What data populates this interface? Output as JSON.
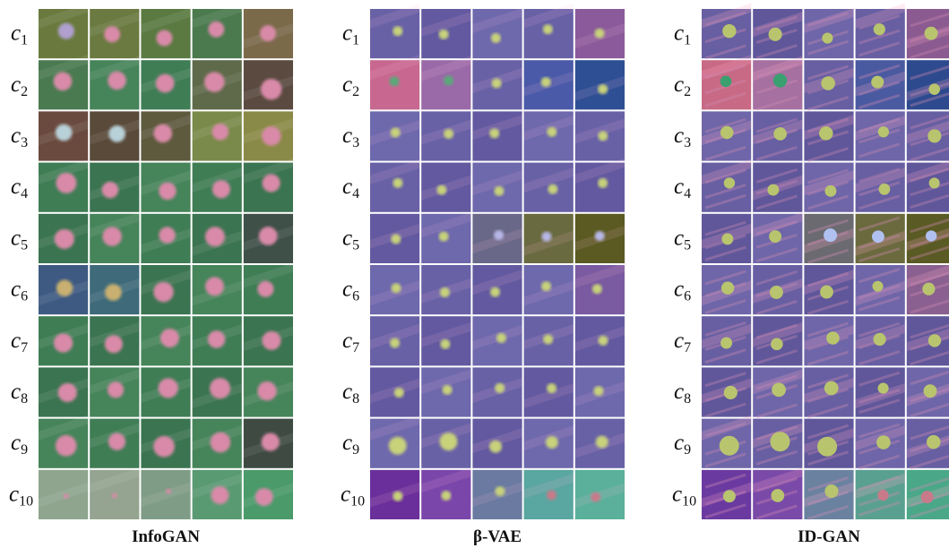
{
  "panels": [
    {
      "caption": "InfoGAN",
      "row_labels": [
        {
          "symbol": "c",
          "subscript": "1"
        },
        {
          "symbol": "c",
          "subscript": "2"
        },
        {
          "symbol": "c",
          "subscript": "3"
        },
        {
          "symbol": "c",
          "subscript": "4"
        },
        {
          "symbol": "c",
          "subscript": "5"
        },
        {
          "symbol": "c",
          "subscript": "6"
        },
        {
          "symbol": "c",
          "subscript": "7"
        },
        {
          "symbol": "c",
          "subscript": "8"
        },
        {
          "symbol": "c",
          "subscript": "9"
        },
        {
          "symbol": "c",
          "subscript": "10"
        }
      ]
    },
    {
      "caption": "β-VAE",
      "row_labels": [
        {
          "symbol": "c",
          "subscript": "1"
        },
        {
          "symbol": "c",
          "subscript": "2"
        },
        {
          "symbol": "c",
          "subscript": "3"
        },
        {
          "symbol": "c",
          "subscript": "4"
        },
        {
          "symbol": "c",
          "subscript": "5"
        },
        {
          "symbol": "c",
          "subscript": "6"
        },
        {
          "symbol": "c",
          "subscript": "7"
        },
        {
          "symbol": "c",
          "subscript": "8"
        },
        {
          "symbol": "c",
          "subscript": "9"
        },
        {
          "symbol": "c",
          "subscript": "10"
        }
      ]
    },
    {
      "caption": "ID-GAN",
      "row_labels": [
        {
          "symbol": "c",
          "subscript": "1"
        },
        {
          "symbol": "c",
          "subscript": "2"
        },
        {
          "symbol": "c",
          "subscript": "3"
        },
        {
          "symbol": "c",
          "subscript": "4"
        },
        {
          "symbol": "c",
          "subscript": "5"
        },
        {
          "symbol": "c",
          "subscript": "6"
        },
        {
          "symbol": "c",
          "subscript": "7"
        },
        {
          "symbol": "c",
          "subscript": "8"
        },
        {
          "symbol": "c",
          "subscript": "9"
        },
        {
          "symbol": "c",
          "subscript": "10"
        }
      ]
    }
  ]
}
